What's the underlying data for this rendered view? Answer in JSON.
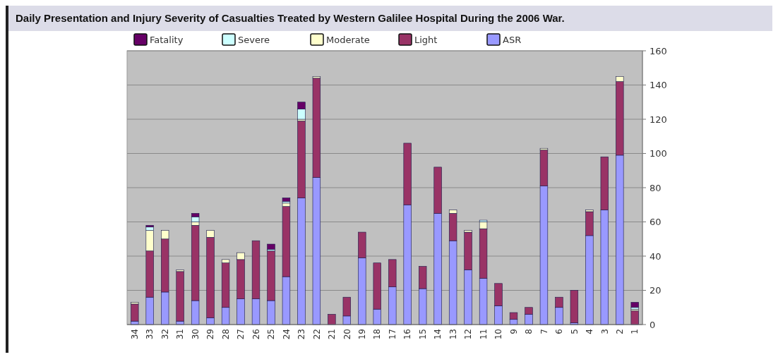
{
  "chart_data": {
    "type": "bar",
    "title": "Daily Presentation and Injury Severity of Casualties Treated by Western Galilee Hospital During the 2006 War.",
    "stacked": true,
    "legend": "top",
    "grid": "y",
    "ylim": [
      0,
      160
    ],
    "yticks": [
      0,
      20,
      40,
      60,
      80,
      100,
      120,
      140,
      160
    ],
    "categories": [
      "34",
      "33",
      "32",
      "31",
      "30",
      "29",
      "28",
      "27",
      "26",
      "25",
      "24",
      "23",
      "22",
      "21",
      "20",
      "19",
      "18",
      "17",
      "16",
      "15",
      "14",
      "13",
      "12",
      "11",
      "10",
      "9",
      "8",
      "7",
      "6",
      "5",
      "4",
      "3",
      "2",
      "1"
    ],
    "series": [
      {
        "name": "ASR",
        "color": "#9999ff",
        "values": [
          2,
          16,
          19,
          2,
          14,
          4,
          10,
          15,
          15,
          14,
          28,
          74,
          86,
          0,
          5,
          39,
          9,
          22,
          70,
          21,
          65,
          49,
          32,
          27,
          11,
          3,
          6,
          81,
          10,
          1,
          52,
          67,
          99,
          0
        ]
      },
      {
        "name": "Light",
        "color": "#993366",
        "values": [
          10,
          27,
          31,
          29,
          44,
          47,
          26,
          23,
          34,
          29,
          41,
          45,
          58,
          6,
          11,
          15,
          27,
          16,
          36,
          13,
          27,
          16,
          22,
          29,
          13,
          4,
          4,
          21,
          6,
          19,
          14,
          31,
          43,
          8
        ]
      },
      {
        "name": "Moderate",
        "color": "#ffffcc",
        "values": [
          1,
          12,
          5,
          1,
          2,
          4,
          2,
          4,
          0,
          0,
          2,
          1,
          1,
          0,
          0,
          0,
          0,
          0,
          0,
          0,
          0,
          2,
          1,
          4,
          0,
          0,
          0,
          1,
          0,
          0,
          1,
          0,
          3,
          1
        ]
      },
      {
        "name": "Severe",
        "color": "#ccffff",
        "values": [
          0,
          2,
          0,
          0,
          3,
          0,
          0,
          0,
          0,
          1,
          1,
          6,
          0,
          0,
          0,
          0,
          0,
          0,
          0,
          0,
          0,
          0,
          0,
          1,
          0,
          0,
          0,
          0,
          0,
          0,
          0,
          0,
          0,
          1
        ]
      },
      {
        "name": "Fatality",
        "color": "#660066",
        "values": [
          0,
          1,
          0,
          0,
          2,
          0,
          0,
          0,
          0,
          3,
          2,
          4,
          0,
          0,
          0,
          0,
          0,
          0,
          0,
          0,
          0,
          0,
          0,
          0,
          0,
          0,
          0,
          0,
          0,
          0,
          0,
          0,
          0,
          3
        ]
      }
    ]
  }
}
